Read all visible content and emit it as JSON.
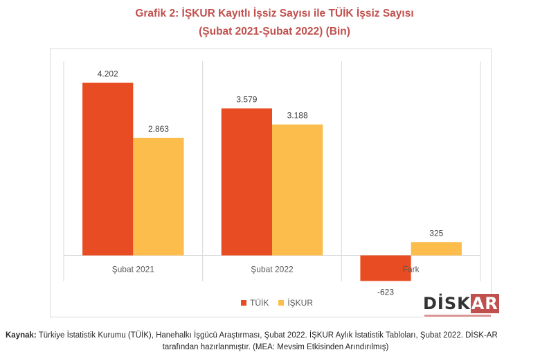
{
  "chart_data": {
    "type": "bar",
    "title": "Grafik 2: İŞKUR Kayıtlı İşsiz Sayısı ile TÜİK İşsiz Sayısı",
    "subtitle": "(Şubat 2021-Şubat 2022) (Bin)",
    "categories": [
      "Şubat 2021",
      "Şubat 2022",
      "Fark"
    ],
    "series": [
      {
        "name": "TÜİK",
        "color": "#e84c22",
        "values": [
          4202,
          3579,
          -623
        ],
        "labels": [
          "4.202",
          "3.579",
          "-623"
        ]
      },
      {
        "name": "İŞKUR",
        "color": "#fdbd4c",
        "values": [
          2863,
          3188,
          325
        ],
        "labels": [
          "2.863",
          "3.188",
          "325"
        ]
      }
    ],
    "ylim": [
      -700,
      4700
    ],
    "grid": false,
    "legend": "bottom"
  },
  "logo": {
    "text_main": "DİSK",
    "text_accent": "AR"
  },
  "source": {
    "label": "Kaynak:",
    "line1": "Türkiye İstatistik Kurumu (TÜİK), Hanehalkı İşgücü Araştırması, Şubat 2022. İŞKUR Aylık İstatistik Tabloları, Şubat 2022. DİSK-AR",
    "line2": "tarafından hazırlanmıştır. (MEA: Mevsim Etkisinden Arındırılmış)"
  }
}
